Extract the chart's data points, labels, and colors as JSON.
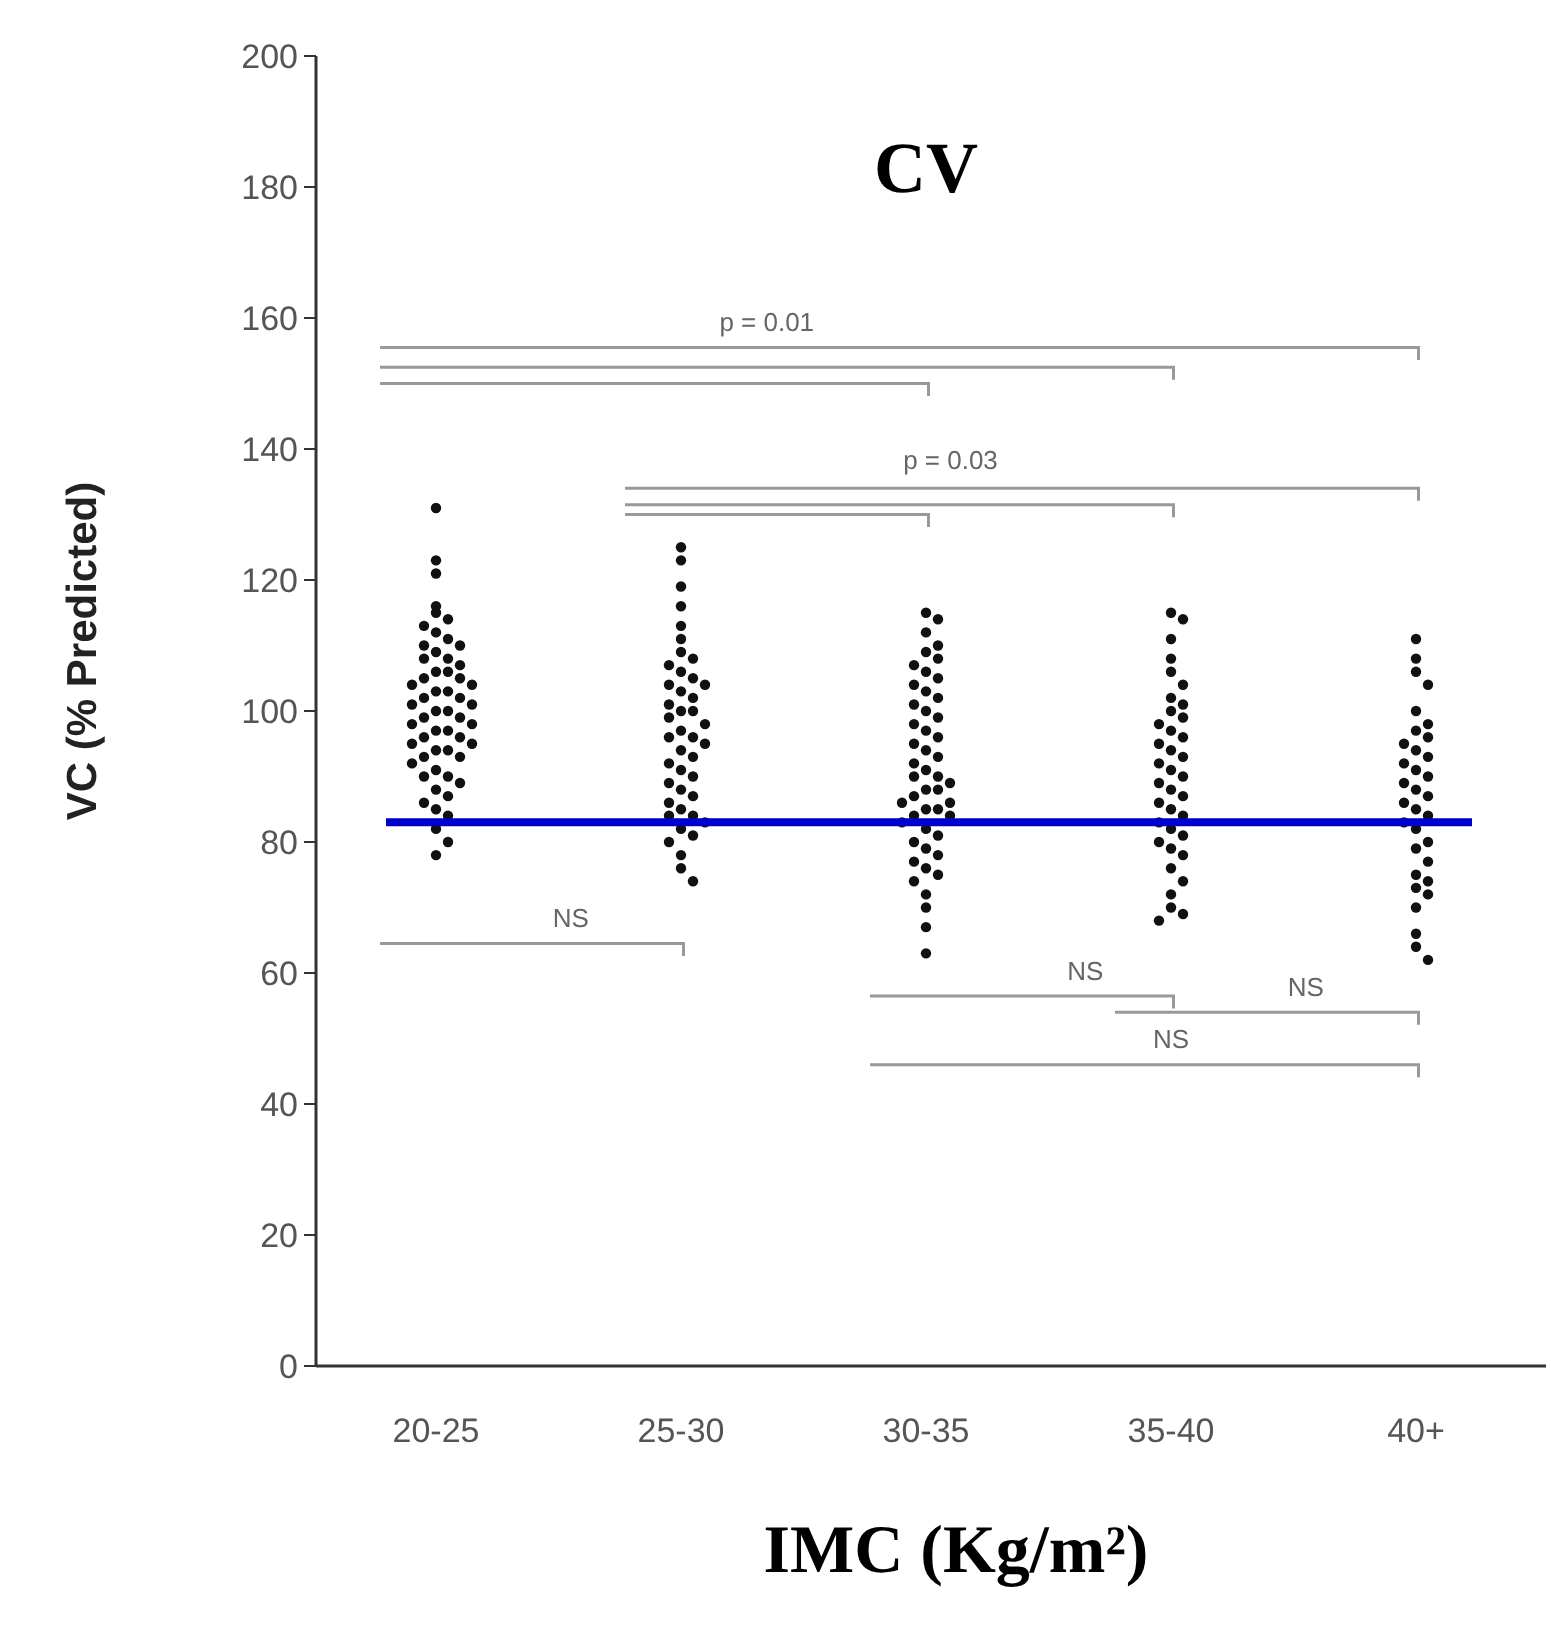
{
  "chart_data": {
    "type": "scatter",
    "title": "CV",
    "xlabel": "IMC (Kg/m²)",
    "ylabel": "VC (% Predicted)",
    "categories": [
      "20-25",
      "25-30",
      "30-35",
      "35-40",
      "40+"
    ],
    "ylim": [
      0,
      200
    ],
    "yticks": [
      0,
      20,
      40,
      60,
      80,
      100,
      120,
      140,
      160,
      180,
      200
    ],
    "grid": false,
    "marker": "circle",
    "ref_lines": [
      {
        "axis": "y",
        "value": 83,
        "color": "#0000cc"
      }
    ],
    "annotations": [
      "p = 0.01",
      "p = 0.03",
      "NS",
      "NS",
      "NS",
      "NS"
    ],
    "series": [
      {
        "color": "#111111",
        "x": [
          "20-25",
          "20-25",
          "20-25",
          "20-25",
          "20-25",
          "20-25",
          "20-25",
          "20-25",
          "20-25",
          "20-25",
          "20-25",
          "20-25",
          "20-25",
          "20-25",
          "20-25",
          "20-25",
          "20-25",
          "20-25",
          "20-25",
          "20-25",
          "20-25",
          "20-25",
          "20-25",
          "20-25",
          "20-25",
          "20-25",
          "20-25",
          "20-25",
          "20-25",
          "20-25",
          "20-25",
          "20-25",
          "20-25",
          "20-25",
          "20-25",
          "20-25",
          "20-25",
          "20-25",
          "20-25",
          "20-25",
          "20-25",
          "20-25",
          "20-25",
          "20-25",
          "20-25",
          "20-25",
          "20-25",
          "20-25",
          "20-25",
          "20-25",
          "20-25",
          "20-25",
          "20-25",
          "20-25",
          "20-25",
          "20-25",
          "25-30",
          "25-30",
          "25-30",
          "25-30",
          "25-30",
          "25-30",
          "25-30",
          "25-30",
          "25-30",
          "25-30",
          "25-30",
          "25-30",
          "25-30",
          "25-30",
          "25-30",
          "25-30",
          "25-30",
          "25-30",
          "25-30",
          "25-30",
          "25-30",
          "25-30",
          "25-30",
          "25-30",
          "25-30",
          "25-30",
          "25-30",
          "25-30",
          "25-30",
          "25-30",
          "25-30",
          "25-30",
          "25-30",
          "25-30",
          "25-30",
          "25-30",
          "25-30",
          "25-30",
          "25-30",
          "25-30",
          "25-30",
          "25-30",
          "25-30",
          "30-35",
          "30-35",
          "30-35",
          "30-35",
          "30-35",
          "30-35",
          "30-35",
          "30-35",
          "30-35",
          "30-35",
          "30-35",
          "30-35",
          "30-35",
          "30-35",
          "30-35",
          "30-35",
          "30-35",
          "30-35",
          "30-35",
          "30-35",
          "30-35",
          "30-35",
          "30-35",
          "30-35",
          "30-35",
          "30-35",
          "30-35",
          "30-35",
          "30-35",
          "30-35",
          "30-35",
          "30-35",
          "30-35",
          "30-35",
          "30-35",
          "30-35",
          "30-35",
          "30-35",
          "30-35",
          "30-35",
          "30-35",
          "30-35",
          "30-35",
          "30-35",
          "30-35",
          "30-35",
          "30-35",
          "30-35",
          "30-35",
          "35-40",
          "35-40",
          "35-40",
          "35-40",
          "35-40",
          "35-40",
          "35-40",
          "35-40",
          "35-40",
          "35-40",
          "35-40",
          "35-40",
          "35-40",
          "35-40",
          "35-40",
          "35-40",
          "35-40",
          "35-40",
          "35-40",
          "35-40",
          "35-40",
          "35-40",
          "35-40",
          "35-40",
          "35-40",
          "35-40",
          "35-40",
          "35-40",
          "35-40",
          "35-40",
          "35-40",
          "35-40",
          "35-40",
          "35-40",
          "35-40",
          "35-40",
          "35-40",
          "40+",
          "40+",
          "40+",
          "40+",
          "40+",
          "40+",
          "40+",
          "40+",
          "40+",
          "40+",
          "40+",
          "40+",
          "40+",
          "40+",
          "40+",
          "40+",
          "40+",
          "40+",
          "40+",
          "40+",
          "40+",
          "40+",
          "40+",
          "40+",
          "40+",
          "40+",
          "40+",
          "40+",
          "40+",
          "40+",
          "40+",
          "40+",
          "40+"
        ],
        "values": [
          131,
          123,
          121,
          116,
          115,
          114,
          113,
          112,
          111,
          110,
          110,
          109,
          108,
          108,
          107,
          106,
          106,
          105,
          105,
          104,
          104,
          103,
          103,
          102,
          102,
          101,
          101,
          100,
          100,
          99,
          99,
          98,
          98,
          97,
          97,
          96,
          96,
          95,
          95,
          94,
          94,
          93,
          93,
          92,
          91,
          90,
          90,
          89,
          88,
          87,
          86,
          85,
          84,
          82,
          80,
          78,
          125,
          123,
          119,
          116,
          113,
          111,
          109,
          108,
          107,
          106,
          105,
          104,
          104,
          103,
          102,
          101,
          100,
          100,
          99,
          98,
          97,
          96,
          96,
          95,
          94,
          93,
          92,
          91,
          90,
          89,
          88,
          87,
          86,
          85,
          84,
          84,
          83,
          82,
          81,
          80,
          78,
          76,
          74,
          115,
          114,
          112,
          110,
          109,
          108,
          107,
          106,
          105,
          104,
          103,
          102,
          101,
          100,
          99,
          98,
          97,
          96,
          95,
          94,
          93,
          92,
          91,
          90,
          90,
          89,
          88,
          88,
          87,
          86,
          86,
          85,
          85,
          84,
          84,
          83,
          82,
          81,
          80,
          79,
          78,
          77,
          76,
          75,
          74,
          72,
          70,
          67,
          63,
          115,
          114,
          111,
          108,
          106,
          104,
          102,
          101,
          100,
          99,
          98,
          97,
          96,
          95,
          94,
          93,
          92,
          91,
          90,
          89,
          88,
          87,
          86,
          85,
          84,
          83,
          82,
          81,
          80,
          79,
          78,
          76,
          74,
          72,
          70,
          69,
          68,
          111,
          108,
          106,
          104,
          100,
          98,
          97,
          96,
          95,
          94,
          93,
          92,
          91,
          90,
          89,
          88,
          87,
          86,
          85,
          84,
          83,
          82,
          80,
          79,
          77,
          75,
          74,
          73,
          72,
          70,
          66,
          64,
          62
        ]
      }
    ]
  }
}
